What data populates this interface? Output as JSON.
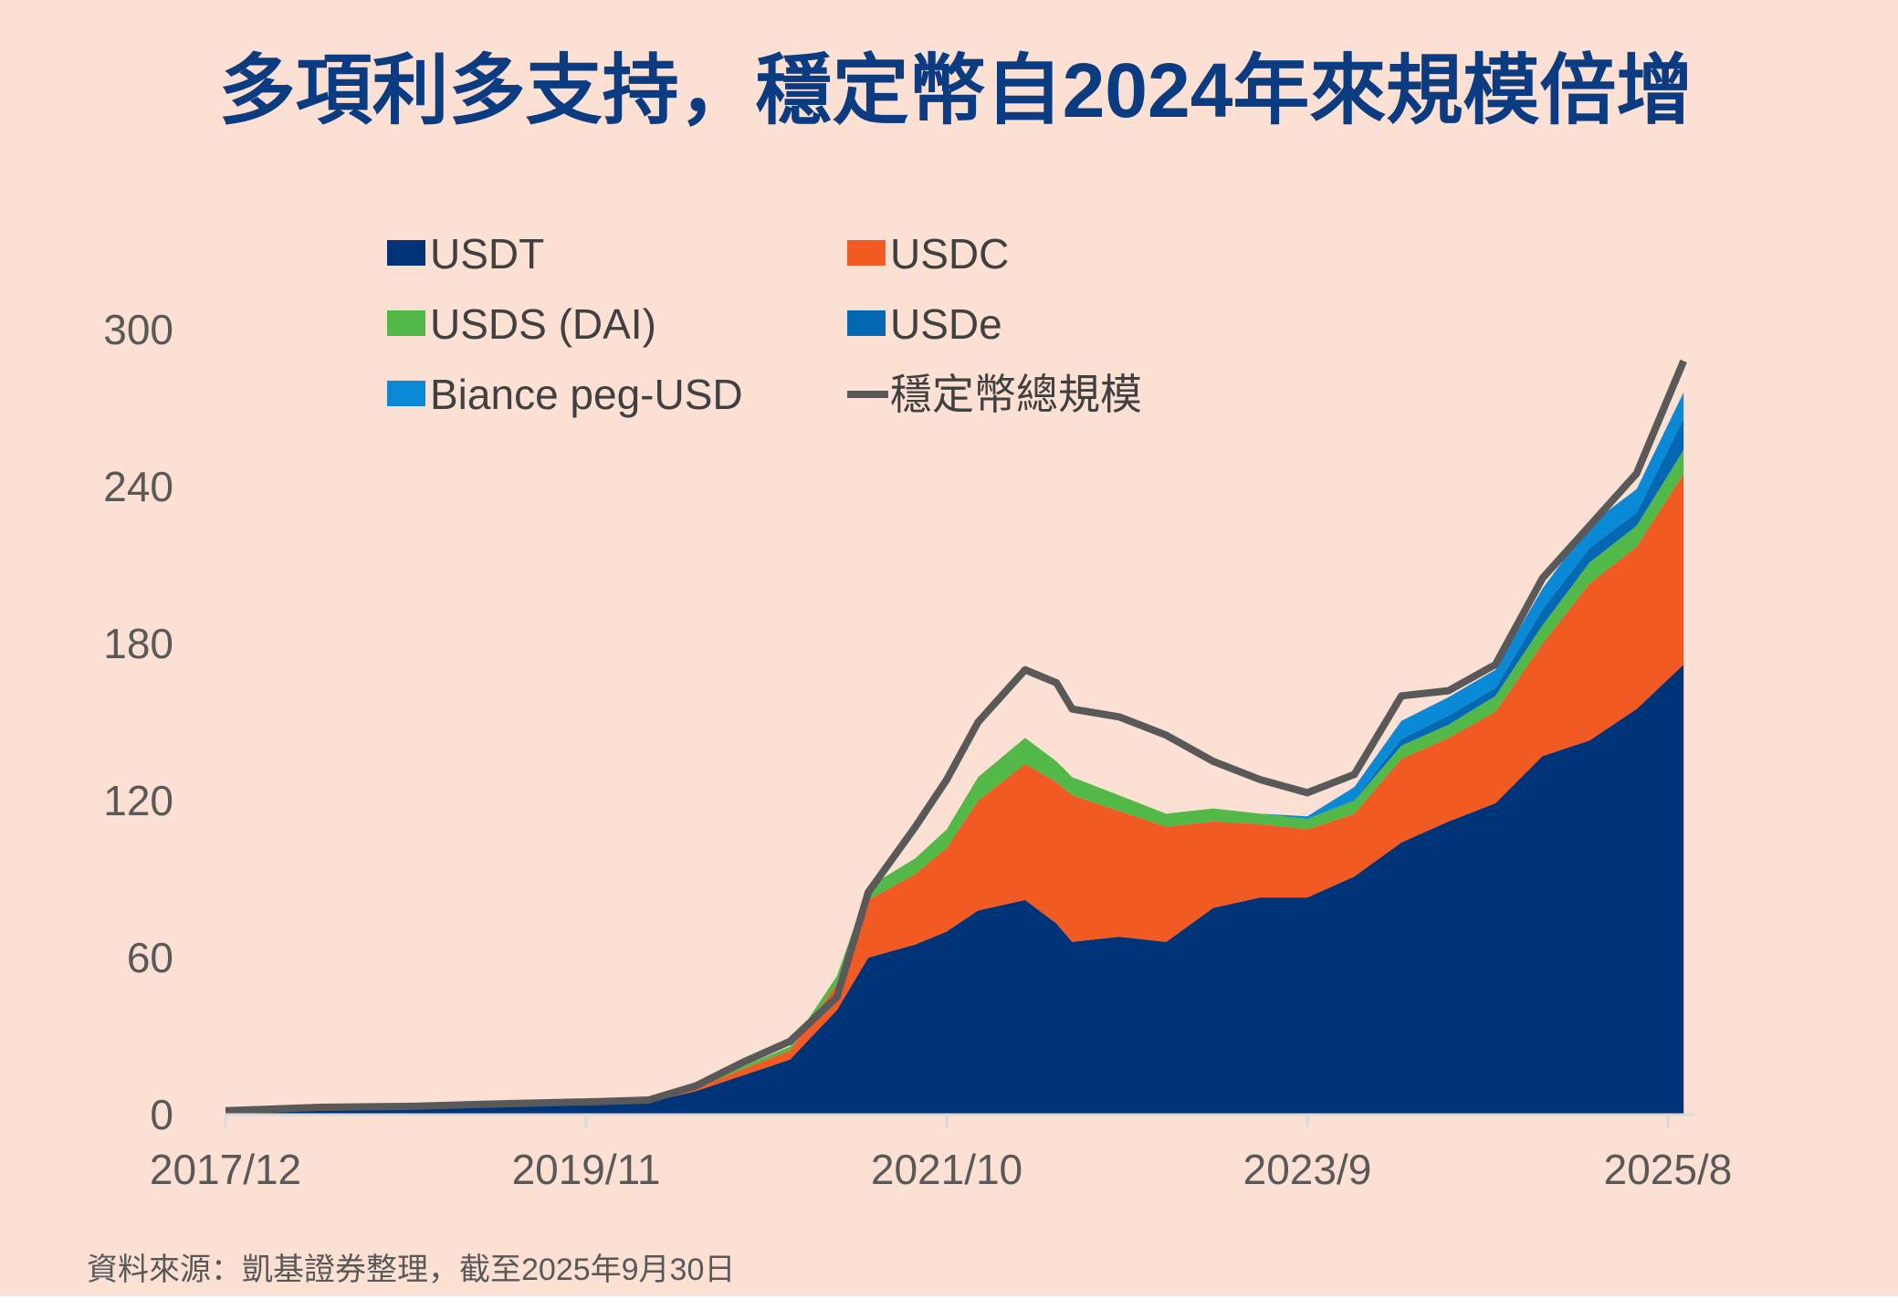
{
  "title": "多項利多支持，穩定幣自2024年來規模倍增",
  "footer": "資料來源：凱基證券整理，截至2025年9月30日",
  "colors": {
    "background": "#fce0d3",
    "USDT": "#003478",
    "USDC": "#f15a22",
    "USDS (DAI)": "#52b848",
    "USDe": "#0568b3",
    "Biance peg-USD": "#0a8ad6",
    "total": "#595959"
  },
  "chart_data": {
    "type": "area",
    "stacked": true,
    "title": "多項利多支持，穩定幣自2024年來規模倍增",
    "xlabel": "",
    "ylabel": "",
    "ylim": [
      0,
      300
    ],
    "yticks": [
      "0",
      "60",
      "120",
      "180",
      "240",
      "300"
    ],
    "xticks": [
      "2017/12",
      "2019/11",
      "2021/10",
      "2023/9",
      "2025/8"
    ],
    "grid": false,
    "legend_position": "top-left",
    "x": [
      "2017/12",
      "2018/6",
      "2018/12",
      "2019/6",
      "2019/12",
      "2020/3",
      "2020/6",
      "2020/9",
      "2020/12",
      "2021/3",
      "2021/5",
      "2021/8",
      "2021/10",
      "2021/12",
      "2022/3",
      "2022/5",
      "2022/6",
      "2022/9",
      "2022/12",
      "2023/3",
      "2023/6",
      "2023/9",
      "2023/12",
      "2024/3",
      "2024/6",
      "2024/9",
      "2024/12",
      "2025/3",
      "2025/6",
      "2025/9"
    ],
    "series": [
      {
        "name": "USDT",
        "values": [
          1.3,
          2.5,
          2.8,
          3.5,
          4.1,
          4.7,
          9,
          15,
          21,
          40,
          60,
          65,
          70,
          78,
          82,
          73,
          66,
          68,
          66,
          79,
          83,
          83,
          91,
          104,
          112,
          119,
          137,
          143,
          155,
          172
        ]
      },
      {
        "name": "USDC",
        "values": [
          0,
          0,
          0.2,
          0.3,
          0.5,
          0.6,
          1,
          2.5,
          3.5,
          10,
          22,
          27,
          32,
          42,
          52,
          54,
          56,
          48,
          44,
          33,
          28,
          26,
          24,
          32,
          32,
          35,
          43,
          60,
          62,
          73
        ]
      },
      {
        "name": "USDS (DAI)",
        "values": [
          0,
          0,
          0,
          0,
          0,
          0,
          0.3,
          1,
          1.5,
          3,
          5,
          6,
          7,
          9,
          10,
          8,
          7,
          6,
          5,
          5,
          4,
          4,
          5,
          5,
          5,
          6,
          7,
          8,
          8,
          9
        ]
      },
      {
        "name": "USDe",
        "values": [
          0,
          0,
          0,
          0,
          0,
          0,
          0,
          0,
          0,
          0,
          0,
          0,
          0,
          0,
          0,
          0,
          0,
          0,
          0,
          0,
          0,
          0,
          0.2,
          2.5,
          3.5,
          3,
          6,
          5.5,
          5,
          12
        ]
      },
      {
        "name": "Biance peg-USD",
        "values": [
          0,
          0,
          0,
          0,
          0,
          0,
          0,
          0,
          0,
          0,
          0,
          0,
          0,
          0,
          0,
          0,
          0,
          0,
          0,
          0,
          0,
          1,
          5,
          7,
          7,
          7,
          8,
          9,
          9,
          10
        ]
      }
    ],
    "line": {
      "name": "穩定幣總規模",
      "values": [
        1.5,
        2.8,
        3.2,
        4.2,
        5,
        5.6,
        11,
        20,
        28,
        45,
        85,
        110,
        128,
        150,
        170,
        165,
        155,
        152,
        145,
        135,
        128,
        123,
        130,
        160,
        162,
        172,
        205,
        225,
        245,
        288
      ]
    },
    "legend": [
      "USDT",
      "USDC",
      "USDS (DAI)",
      "USDe",
      "Biance peg-USD",
      "穩定幣總規模"
    ]
  }
}
